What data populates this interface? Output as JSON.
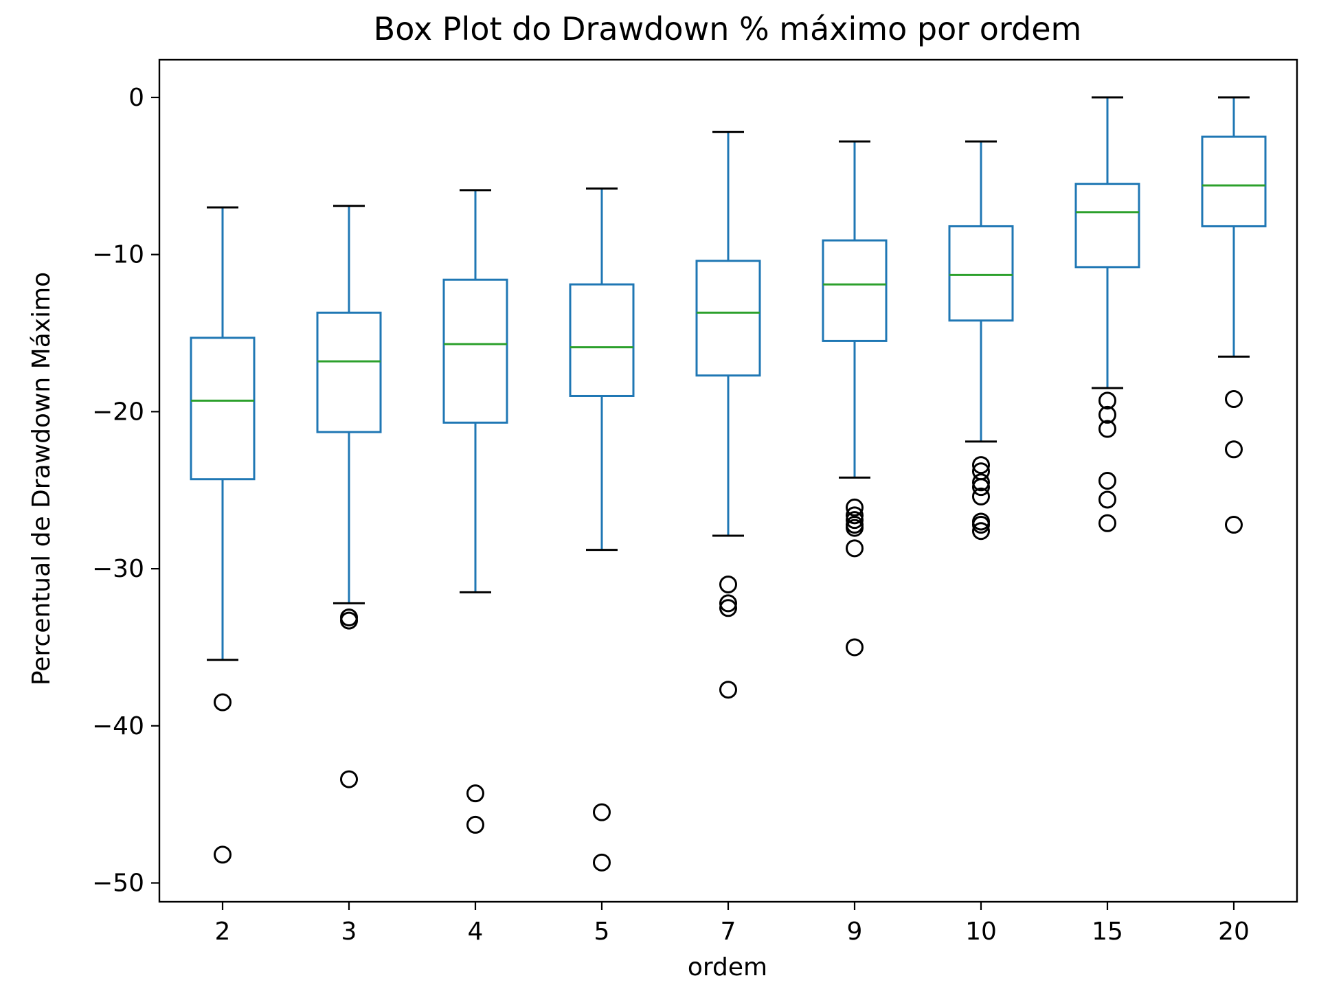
{
  "chart_data": {
    "type": "box",
    "title": "Box Plot do Drawdown % máximo por ordem",
    "xlabel": "ordem",
    "ylabel": "Percentual de Drawdown Máximo",
    "ylim": [
      -51.2,
      2.4
    ],
    "yticks": [
      0,
      -10,
      -20,
      -30,
      -40,
      -50
    ],
    "ytick_labels": [
      "0",
      "−10",
      "−20",
      "−30",
      "−40",
      "−50"
    ],
    "grid": false,
    "legend": "none",
    "colors": {
      "box": "#1f77b4",
      "median": "#2ca02c",
      "flier": "#000000",
      "axis": "#000000"
    },
    "categories": [
      "2",
      "3",
      "4",
      "5",
      "7",
      "9",
      "10",
      "15",
      "20"
    ],
    "boxes": [
      {
        "category": "2",
        "whislo": -35.8,
        "q1": -24.3,
        "med": -19.3,
        "q3": -15.3,
        "whishi": -7.0,
        "fliers": [
          -38.5,
          -48.2
        ]
      },
      {
        "category": "3",
        "whislo": -32.2,
        "q1": -21.3,
        "med": -16.8,
        "q3": -13.7,
        "whishi": -6.9,
        "fliers": [
          -33.1,
          -33.3,
          -43.4
        ]
      },
      {
        "category": "4",
        "whislo": -31.5,
        "q1": -20.7,
        "med": -15.7,
        "q3": -11.6,
        "whishi": -5.9,
        "fliers": [
          -44.3,
          -46.3
        ]
      },
      {
        "category": "5",
        "whislo": -28.8,
        "q1": -19.0,
        "med": -15.9,
        "q3": -11.9,
        "whishi": -5.8,
        "fliers": [
          -45.5,
          -48.7
        ]
      },
      {
        "category": "7",
        "whislo": -27.9,
        "q1": -17.7,
        "med": -13.7,
        "q3": -10.4,
        "whishi": -2.2,
        "fliers": [
          -31.0,
          -32.2,
          -32.5,
          -37.7
        ]
      },
      {
        "category": "9",
        "whislo": -24.2,
        "q1": -15.5,
        "med": -11.9,
        "q3": -9.1,
        "whishi": -2.8,
        "fliers": [
          -26.1,
          -26.6,
          -26.9,
          -27.2,
          -27.4,
          -28.7,
          -35.0
        ]
      },
      {
        "category": "10",
        "whislo": -21.9,
        "q1": -14.2,
        "med": -11.3,
        "q3": -8.2,
        "whishi": -2.8,
        "fliers": [
          -23.4,
          -23.8,
          -24.5,
          -24.8,
          -25.4,
          -27.0,
          -27.2,
          -27.6
        ]
      },
      {
        "category": "15",
        "whislo": -18.5,
        "q1": -10.8,
        "med": -7.3,
        "q3": -5.5,
        "whishi": 0.0,
        "fliers": [
          -19.3,
          -20.2,
          -21.1,
          -24.4,
          -25.6,
          -27.1
        ]
      },
      {
        "category": "20",
        "whislo": -16.5,
        "q1": -8.2,
        "med": -5.6,
        "q3": -2.5,
        "whishi": 0.0,
        "fliers": [
          -19.2,
          -22.4,
          -27.2
        ]
      }
    ]
  }
}
